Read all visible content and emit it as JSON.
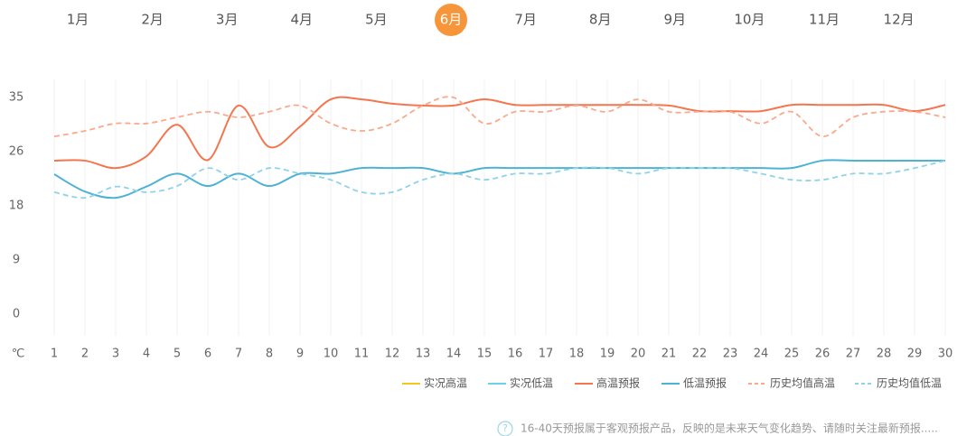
{
  "tabs": {
    "items": [
      "1月",
      "2月",
      "3月",
      "4月",
      "5月",
      "6月",
      "7月",
      "8月",
      "9月",
      "10月",
      "11月",
      "12月"
    ],
    "selected": 5
  },
  "chart_data": {
    "type": "line",
    "y_unit": "℃",
    "x": [
      1,
      2,
      3,
      4,
      5,
      6,
      7,
      8,
      9,
      10,
      11,
      12,
      13,
      14,
      15,
      16,
      17,
      18,
      19,
      20,
      21,
      22,
      23,
      24,
      25,
      26,
      27,
      28,
      29,
      30
    ],
    "xlim": [
      1,
      30
    ],
    "xticks": [
      1,
      2,
      3,
      4,
      5,
      6,
      7,
      8,
      9,
      10,
      11,
      12,
      13,
      14,
      15,
      16,
      17,
      18,
      19,
      20,
      21,
      22,
      23,
      24,
      25,
      26,
      27,
      28,
      29,
      30
    ],
    "ylim": [
      0,
      35
    ],
    "yticks": [
      0,
      {
        "value": 8.75,
        "label": "9"
      },
      {
        "value": 17.5,
        "label": "18"
      },
      {
        "value": 26.25,
        "label": "26"
      },
      35
    ],
    "grid": "x",
    "series": [
      {
        "name": "实况高温",
        "color": "#f5c518",
        "dash": false,
        "values": [
          null,
          null,
          null,
          null,
          null,
          null,
          null,
          null,
          null,
          null,
          null,
          null,
          null,
          null,
          null,
          null,
          null,
          null,
          null,
          null,
          null,
          null,
          null,
          null,
          null,
          null,
          null,
          null,
          null,
          null
        ]
      },
      {
        "name": "实况低温",
        "color": "#6fd0ea",
        "dash": false,
        "values": [
          null,
          null,
          null,
          null,
          null,
          null,
          null,
          null,
          null,
          null,
          null,
          null,
          null,
          null,
          null,
          null,
          null,
          null,
          null,
          null,
          null,
          null,
          null,
          null,
          null,
          null,
          null,
          null,
          null,
          null
        ]
      },
      {
        "name": "高温预报",
        "color": "#f4764f",
        "dash": false,
        "values": [
          24.8,
          24.8,
          23.6,
          25.5,
          30.6,
          24.9,
          33.7,
          27,
          30.3,
          34.7,
          34.7,
          34,
          33.7,
          33.7,
          34.7,
          33.8,
          33.8,
          33.8,
          33.8,
          33.8,
          33.7,
          32.8,
          32.8,
          32.8,
          33.8,
          33.8,
          33.8,
          33.8,
          32.8,
          33.8
        ]
      },
      {
        "name": "低温预报",
        "color": "#4eb3d3",
        "dash": false,
        "values": [
          22.6,
          19.8,
          18.8,
          20.6,
          22.7,
          20.7,
          22.7,
          20.7,
          22.7,
          22.7,
          23.6,
          23.6,
          23.6,
          22.7,
          23.6,
          23.6,
          23.6,
          23.6,
          23.6,
          23.6,
          23.6,
          23.6,
          23.6,
          23.6,
          23.6,
          24.8,
          24.8,
          24.8,
          24.8,
          24.8
        ]
      },
      {
        "name": "历史均值高温",
        "color": "#f9a98c",
        "dash": true,
        "values": [
          28.7,
          29.6,
          30.8,
          30.8,
          31.8,
          32.7,
          31.8,
          32.7,
          33.7,
          30.8,
          29.6,
          30.8,
          33.7,
          35,
          30.8,
          32.7,
          32.7,
          33.7,
          32.7,
          34.7,
          32.7,
          32.7,
          32.7,
          30.8,
          32.7,
          28.7,
          31.8,
          32.7,
          32.7,
          31.8
        ]
      },
      {
        "name": "历史均值低温",
        "color": "#8fd3e8",
        "dash": true,
        "values": [
          19.7,
          18.8,
          20.6,
          19.7,
          20.7,
          23.6,
          21.7,
          23.6,
          22.7,
          21.7,
          19.7,
          19.7,
          21.7,
          22.7,
          21.7,
          22.7,
          22.7,
          23.6,
          23.6,
          22.7,
          23.6,
          23.6,
          23.6,
          22.7,
          21.7,
          21.7,
          22.7,
          22.7,
          23.6,
          24.8
        ]
      }
    ],
    "note": "16-40天预报属于客观预报产品，反映的是未来天气变化趋势、请随时关注最新预报....."
  }
}
